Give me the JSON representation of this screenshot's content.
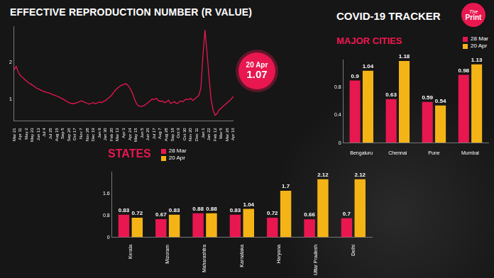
{
  "header": "COVID-19 TRACKER",
  "logo": [
    "The",
    "Print"
  ],
  "chart_data": [
    {
      "type": "line",
      "title": "EFFECTIVE REPRODUCTION NUMBER (R VALUE)",
      "categories": [
        "Mar 21",
        null,
        null,
        "Apr 11",
        null,
        null,
        "May 2",
        null,
        null,
        "May 23",
        null,
        null,
        "Jun 13",
        null,
        null,
        "Jul 4",
        null,
        null,
        "Jul 25",
        null,
        null,
        "Aug 15",
        null,
        null,
        "Sep 5",
        null,
        null,
        "Sep 26",
        null,
        null,
        "Oct 17",
        null,
        null,
        "Nov 7",
        null,
        null,
        "Nov 28",
        null,
        null,
        "Dec 19",
        null,
        null,
        "Jan 9",
        null,
        null,
        "Jan 30",
        null,
        null,
        "Feb 20",
        null,
        null,
        "Mar 13",
        null,
        null,
        "Apr 3",
        null,
        null,
        "Apr 24",
        null,
        null,
        "May 15",
        null,
        null,
        "Jun 5",
        null,
        null,
        "Jun 26",
        null,
        null,
        "Jul 17",
        null,
        null,
        "Aug 7",
        null,
        null,
        "Aug 28",
        null,
        null,
        "Sep 18",
        null,
        null,
        "Oct 9",
        null,
        null,
        "Oct 30",
        null,
        null,
        "Nov 20",
        null,
        null,
        "Dec 11",
        null,
        null,
        "Jan 1",
        null,
        null,
        "Jan 22",
        null,
        null,
        "Feb 12",
        null,
        null,
        "Mar 5",
        null,
        null,
        "Mar 26",
        null,
        null,
        "Apr 16"
      ],
      "values": [
        1.8,
        1.9,
        1.75,
        1.65,
        1.6,
        1.55,
        1.5,
        1.45,
        1.42,
        1.38,
        1.35,
        1.3,
        1.28,
        1.25,
        1.22,
        1.2,
        1.18,
        1.17,
        1.15,
        1.12,
        1.1,
        1.08,
        1.06,
        1.03,
        1.0,
        0.97,
        0.93,
        0.9,
        0.88,
        0.87,
        0.88,
        0.9,
        0.92,
        0.95,
        0.93,
        0.9,
        0.88,
        0.86,
        0.88,
        0.9,
        0.87,
        0.89,
        0.92,
        0.9,
        0.93,
        0.96,
        1.0,
        1.05,
        1.1,
        1.18,
        1.25,
        1.3,
        1.35,
        1.38,
        1.4,
        1.42,
        1.38,
        1.3,
        1.2,
        1.05,
        0.9,
        0.82,
        0.8,
        0.8,
        0.82,
        0.86,
        0.9,
        0.95,
        1.0,
        0.98,
        1.02,
        0.96,
        0.93,
        0.95,
        0.9,
        0.92,
        0.97,
        0.88,
        0.9,
        0.93,
        0.87,
        0.9,
        0.95,
        0.92,
        0.97,
        1.0,
        0.98,
        1.02,
        0.96,
        1.0,
        1.05,
        1.1,
        1.3,
        2.2,
        2.9,
        2.3,
        1.6,
        1.0,
        0.7,
        0.55,
        0.6,
        0.7,
        0.75,
        0.8,
        0.85,
        0.9,
        0.95,
        1.0,
        1.07
      ],
      "color": "#e8174f",
      "ylim": [
        0.4,
        3
      ],
      "yticks": [
        1,
        2
      ],
      "grid": false,
      "annotation": {
        "text": "20 Apr",
        "value": 1.07
      }
    },
    {
      "type": "bar",
      "title": "MAJOR CITIES",
      "categories": [
        "Bengaluru",
        "Chennai",
        "Pune",
        "Mumbai"
      ],
      "series": [
        {
          "name": "28 Mar",
          "color": "#e8174f",
          "values": [
            0.9,
            0.63,
            0.59,
            0.98
          ]
        },
        {
          "name": "20 Apr",
          "color": "#f5b416",
          "values": [
            1.04,
            1.18,
            0.54,
            1.13
          ]
        }
      ],
      "ylim": [
        0,
        1.2
      ],
      "yticks": [
        0,
        0.4,
        0.8
      ],
      "grid": false,
      "legend": "top right",
      "data_labels": true
    },
    {
      "type": "bar",
      "title": "STATES",
      "categories": [
        "Kerala",
        "Mizoram",
        "Maharashtra",
        "Karnataka",
        "Haryana",
        "Uttar Pradesh",
        "Delhi"
      ],
      "series": [
        {
          "name": "28 Mar",
          "color": "#e8174f",
          "values": [
            0.83,
            0.67,
            0.88,
            0.83,
            0.72,
            0.66,
            0.7
          ]
        },
        {
          "name": "20 Apr",
          "color": "#f5b416",
          "values": [
            0.72,
            0.83,
            0.88,
            1.04,
            1.7,
            2.12,
            2.12
          ]
        }
      ],
      "ylim": [
        0,
        2.4
      ],
      "yticks": [
        0,
        0.8,
        1.6
      ],
      "grid": false,
      "legend": "top left",
      "data_labels": true
    }
  ]
}
